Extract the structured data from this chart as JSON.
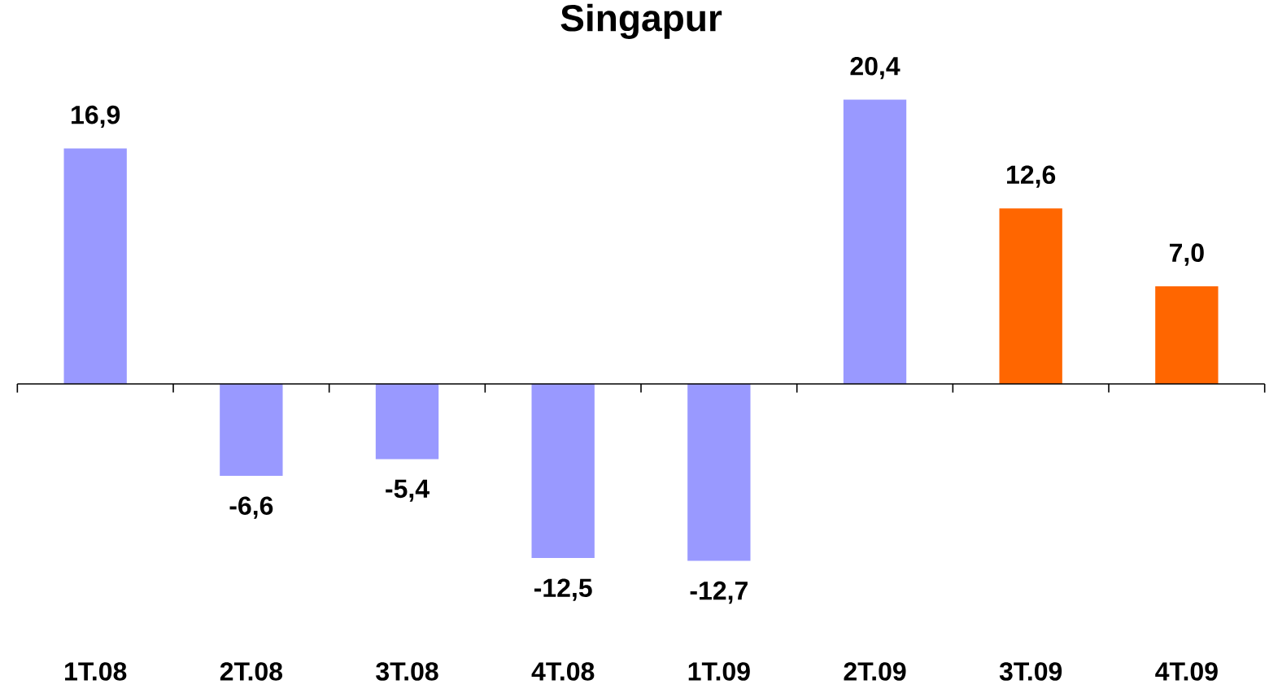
{
  "chart_data": {
    "type": "bar",
    "title": "Singapur",
    "categories": [
      "1T.08",
      "2T.08",
      "3T.08",
      "4T.08",
      "1T.09",
      "2T.09",
      "3T.09",
      "4T.09"
    ],
    "values": [
      16.9,
      -6.6,
      -5.4,
      -12.5,
      -12.7,
      20.4,
      12.6,
      7.0
    ],
    "colors": [
      "#9999ff",
      "#9999ff",
      "#9999ff",
      "#9999ff",
      "#9999ff",
      "#9999ff",
      "#ff6600",
      "#ff6600"
    ],
    "value_labels": [
      "16,9",
      "-6,6",
      "-5,4",
      "-12,5",
      "-12,7",
      "20,4",
      "12,6",
      "7,0"
    ]
  }
}
